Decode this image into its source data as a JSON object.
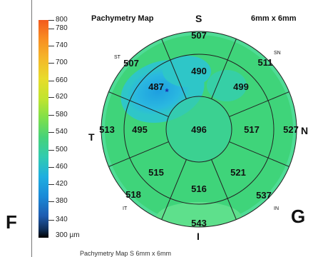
{
  "title": "Pachymetry Map",
  "size_label": "6mm x 6mm",
  "panel_left_label": "F",
  "panel_right_label": "G",
  "bottom_caption": "Pachymetry Map          S          6mm x 6mm",
  "scale": {
    "unit_label": "300 µm",
    "ticks": [
      {
        "label": "800"
      },
      {
        "label": "780"
      },
      {
        "label": "740"
      },
      {
        "label": "700"
      },
      {
        "label": "660"
      },
      {
        "label": "620"
      },
      {
        "label": "580"
      },
      {
        "label": "540"
      },
      {
        "label": "500"
      },
      {
        "label": "460"
      },
      {
        "label": "420"
      },
      {
        "label": "380"
      },
      {
        "label": "340"
      }
    ]
  },
  "orientation": {
    "superior": "S",
    "inferior": "I",
    "temporal": "T",
    "nasal": "N",
    "superotemporal": "ST",
    "superonasal": "SN",
    "inferotemporal": "IT",
    "inferonasal": "IN"
  },
  "sectors": {
    "center": "496",
    "inner_superior": "490",
    "inner_nasal": "517",
    "inner_inferior": "516",
    "inner_temporal": "495",
    "inner_superotemporal": "487",
    "inner_superonasal": "499",
    "inner_inferonasal": "521",
    "inner_inferotemporal": "515",
    "outer_superior": "507",
    "outer_superonasal": "511",
    "outer_nasal": "527",
    "outer_inferonasal": "537",
    "outer_inferior": "543",
    "outer_inferotemporal": "518",
    "outer_temporal": "513",
    "outer_superotemporal": "507"
  },
  "minimum_marker": "*",
  "colors": {
    "map_base": "#3fd47a",
    "thin_region": "#2ab8e0",
    "thin_core": "#1e9fe0",
    "outer_edge": "#48d890",
    "grid_lines": "#222222"
  }
}
